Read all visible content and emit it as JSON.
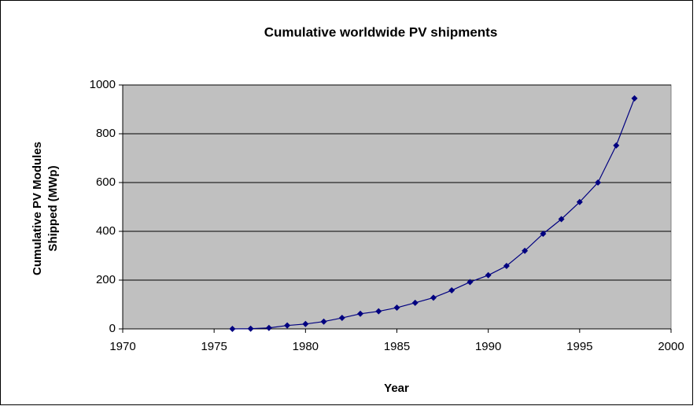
{
  "chart_data": {
    "type": "line",
    "title": "Cumulative worldwide PV shipments",
    "xlabel": "Year",
    "ylabel": [
      "Cumulative PV Modules",
      "Shipped (MWp)"
    ],
    "x": [
      1976,
      1977,
      1978,
      1979,
      1980,
      1981,
      1982,
      1983,
      1984,
      1985,
      1986,
      1987,
      1988,
      1989,
      1990,
      1991,
      1992,
      1993,
      1994,
      1995,
      1996,
      1997,
      1998
    ],
    "series": [
      {
        "color": "#000080",
        "values": [
          0,
          1,
          4,
          14,
          20,
          30,
          45,
          62,
          72,
          87,
          107,
          128,
          158,
          192,
          220,
          258,
          320,
          390,
          450,
          520,
          600,
          752,
          945
        ]
      }
    ],
    "xlim": [
      1970,
      2000
    ],
    "xticks": [
      1970,
      1975,
      1980,
      1985,
      1990,
      1995,
      2000
    ],
    "ylim": [
      0,
      1000
    ],
    "yticks": [
      0,
      200,
      400,
      600,
      800,
      1000
    ],
    "grid": true,
    "plot_background": "#c0c0c0"
  }
}
